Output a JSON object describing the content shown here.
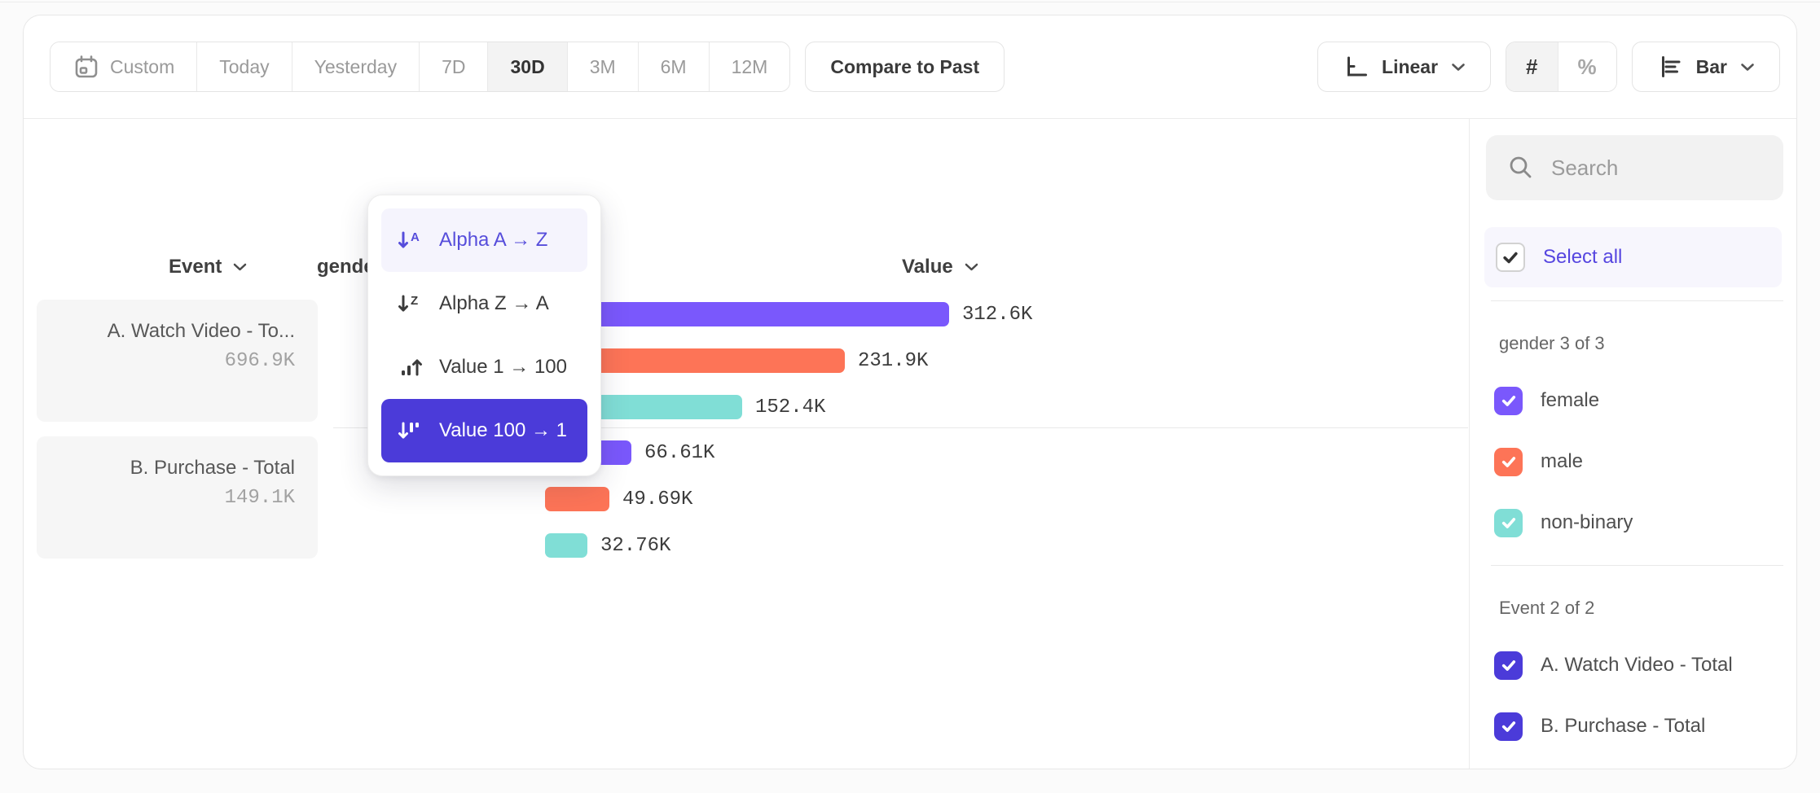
{
  "toolbar": {
    "date_ranges": [
      {
        "label": "Custom",
        "icon": "calendar-icon",
        "active": false
      },
      {
        "label": "Today",
        "active": false
      },
      {
        "label": "Yesterday",
        "active": false
      },
      {
        "label": "7D",
        "active": false
      },
      {
        "label": "30D",
        "active": true
      },
      {
        "label": "3M",
        "active": false
      },
      {
        "label": "6M",
        "active": false
      },
      {
        "label": "12M",
        "active": false
      }
    ],
    "compare_button": "Compare to Past",
    "scale_selector": {
      "label": "Linear",
      "icon": "axis-icon"
    },
    "value_format": {
      "number": "#",
      "percent": "%",
      "active": "number"
    },
    "chart_type": {
      "label": "Bar",
      "icon": "bar-chart-icon"
    }
  },
  "columns": {
    "event": "Event",
    "breakdown": "gender",
    "value": "Value"
  },
  "left_panel": {
    "rows": [
      {
        "name": "A. Watch Video - To...",
        "value": "696.9K"
      },
      {
        "name": "B. Purchase - Total",
        "value": "149.1K"
      }
    ]
  },
  "sort_menu": {
    "column": "gender",
    "items": [
      {
        "label": "Alpha A → Z",
        "icon": "sort-alpha-asc-icon",
        "state": "hover"
      },
      {
        "label": "Alpha Z → A",
        "icon": "sort-alpha-desc-icon",
        "state": "default"
      },
      {
        "label": "Value 1 → 100",
        "icon": "sort-value-asc-icon",
        "state": "default"
      },
      {
        "label": "Value 100 → 1",
        "icon": "sort-value-desc-icon",
        "state": "selected"
      }
    ]
  },
  "chart_data": {
    "type": "bar",
    "orientation": "horizontal",
    "axis_max": 312600,
    "series_colors": {
      "female": "#7a58fc",
      "male": "#fd7457",
      "non-binary": "#80ded6"
    },
    "groups": [
      {
        "event": "A. Watch Video - Total",
        "total_label": "696.9K",
        "bars": [
          {
            "segment": "female",
            "value": 312600,
            "label": "312.6K"
          },
          {
            "segment": "male",
            "value": 231900,
            "label": "231.9K"
          },
          {
            "segment": "non-binary",
            "value": 152400,
            "label": "152.4K"
          }
        ]
      },
      {
        "event": "B. Purchase - Total",
        "total_label": "149.1K",
        "bars": [
          {
            "segment": "female",
            "value": 66610,
            "label": "66.61K"
          },
          {
            "segment": "male",
            "value": 49690,
            "label": "49.69K"
          },
          {
            "segment": "non-binary",
            "value": 32760,
            "label": "32.76K"
          }
        ]
      }
    ]
  },
  "sidebar": {
    "search": {
      "placeholder": "Search"
    },
    "select_all": {
      "label": "Select all",
      "checked": true
    },
    "sections": [
      {
        "title": "gender 3 of 3",
        "items": [
          {
            "label": "female",
            "checked": true,
            "color": "#7a58fc"
          },
          {
            "label": "male",
            "checked": true,
            "color": "#fd7457"
          },
          {
            "label": "non-binary",
            "checked": true,
            "color": "#80ded6"
          }
        ]
      },
      {
        "title": "Event 2 of 2",
        "items": [
          {
            "label": "A. Watch Video - Total",
            "checked": true,
            "color": "#4b3bd9"
          },
          {
            "label": "B. Purchase - Total",
            "checked": true,
            "color": "#4b3bd9"
          }
        ]
      }
    ]
  }
}
